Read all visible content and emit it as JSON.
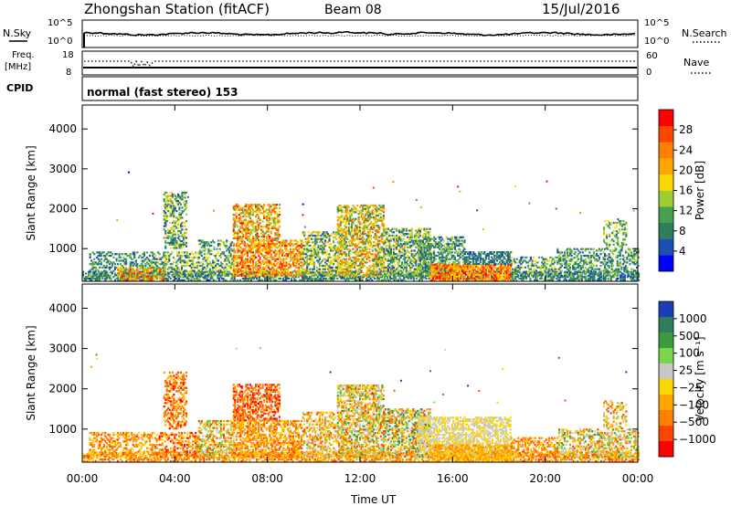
{
  "header": {
    "station": "Zhongshan Station (fitACF)",
    "beam": "Beam 08",
    "date": "15/Jul/2016"
  },
  "top_panels": {
    "nsky_label": "N.Sky",
    "nsearch_label": "N.Search",
    "noise_ticks_left": [
      "10^5",
      "10^0"
    ],
    "noise_ticks_right": [
      "10^5",
      "10^0"
    ],
    "freq_label": "Freq.",
    "freq_unit": "[MHz]",
    "freq_ticks": [
      "18",
      "8"
    ],
    "nave_label": "Nave",
    "nave_ticks": [
      "60",
      "0"
    ],
    "cpid_label": "CPID",
    "cpid_text": "normal (fast stereo) 153"
  },
  "colors": {
    "power_scale": [
      "#0000ff",
      "#1a50b4",
      "#2f7d5c",
      "#46a050",
      "#9ccd32",
      "#ffd700",
      "#ffa500",
      "#ff7f00",
      "#ff4500",
      "#ff0000"
    ],
    "velocity_scale": [
      "#1a3fb4",
      "#2f7d5c",
      "#3d9b3d",
      "#79d64a",
      "#c8c8c8",
      "#ffd700",
      "#ffa500",
      "#ff7f00",
      "#ff4500",
      "#ff0000"
    ]
  },
  "chart_data": [
    {
      "type": "heatmap",
      "title": "Power",
      "xlabel": "Time UT",
      "ylabel": "Slant Range [km]",
      "x_ticks": [
        "00:00",
        "04:00",
        "08:00",
        "12:00",
        "16:00",
        "20:00",
        "00:00"
      ],
      "y_ticks": [
        1000,
        2000,
        3000,
        4000
      ],
      "xlim": [
        0,
        24
      ],
      "ylim": [
        180,
        4600
      ],
      "colorbar_label": "Power [dB]",
      "colorbar_ticks": [
        "4",
        "8",
        "12",
        "16",
        "20",
        "24",
        "28"
      ],
      "colorbar_range": [
        0,
        32
      ],
      "blobs": [
        {
          "t0": 0.0,
          "t1": 24.0,
          "r0": 190,
          "r1": 420,
          "density": 0.55,
          "lo": 3,
          "hi": 14
        },
        {
          "t0": 0.3,
          "t1": 3.0,
          "r0": 300,
          "r1": 900,
          "density": 0.35,
          "lo": 4,
          "hi": 14
        },
        {
          "t0": 1.5,
          "t1": 3.5,
          "r0": 200,
          "r1": 500,
          "density": 0.6,
          "lo": 10,
          "hi": 30
        },
        {
          "t0": 3.0,
          "t1": 5.0,
          "r0": 300,
          "r1": 900,
          "density": 0.4,
          "lo": 5,
          "hi": 18
        },
        {
          "t0": 3.5,
          "t1": 4.5,
          "r0": 1000,
          "r1": 2400,
          "density": 0.4,
          "lo": 4,
          "hi": 20
        },
        {
          "t0": 5.0,
          "t1": 6.5,
          "r0": 300,
          "r1": 1200,
          "density": 0.4,
          "lo": 4,
          "hi": 18
        },
        {
          "t0": 6.5,
          "t1": 9.5,
          "r0": 300,
          "r1": 1200,
          "density": 0.6,
          "lo": 14,
          "hi": 30
        },
        {
          "t0": 6.5,
          "t1": 8.5,
          "r0": 1200,
          "r1": 2100,
          "density": 0.5,
          "lo": 10,
          "hi": 30
        },
        {
          "t0": 9.5,
          "t1": 11.0,
          "r0": 300,
          "r1": 1400,
          "density": 0.45,
          "lo": 4,
          "hi": 22
        },
        {
          "t0": 11.0,
          "t1": 13.0,
          "r0": 300,
          "r1": 2100,
          "density": 0.55,
          "lo": 8,
          "hi": 26
        },
        {
          "t0": 13.0,
          "t1": 15.0,
          "r0": 300,
          "r1": 1500,
          "density": 0.5,
          "lo": 4,
          "hi": 20
        },
        {
          "t0": 14.5,
          "t1": 16.5,
          "r0": 300,
          "r1": 1300,
          "density": 0.5,
          "lo": 4,
          "hi": 16
        },
        {
          "t0": 15.0,
          "t1": 18.5,
          "r0": 200,
          "r1": 600,
          "density": 0.7,
          "lo": 16,
          "hi": 31
        },
        {
          "t0": 16.5,
          "t1": 18.5,
          "r0": 600,
          "r1": 900,
          "density": 0.6,
          "lo": 4,
          "hi": 10
        },
        {
          "t0": 18.5,
          "t1": 20.5,
          "r0": 300,
          "r1": 800,
          "density": 0.4,
          "lo": 4,
          "hi": 18
        },
        {
          "t0": 20.5,
          "t1": 24.0,
          "r0": 300,
          "r1": 1000,
          "density": 0.4,
          "lo": 4,
          "hi": 16
        },
        {
          "t0": 22.5,
          "t1": 23.5,
          "r0": 1000,
          "r1": 1700,
          "density": 0.3,
          "lo": 6,
          "hi": 18
        }
      ]
    },
    {
      "type": "heatmap",
      "title": "Velocity",
      "xlabel": "Time UT",
      "ylabel": "Slant Range [km]",
      "x_ticks": [
        "00:00",
        "04:00",
        "08:00",
        "12:00",
        "16:00",
        "20:00",
        "00:00"
      ],
      "y_ticks": [
        1000,
        2000,
        3000,
        4000
      ],
      "xlim": [
        0,
        24
      ],
      "ylim": [
        180,
        4600
      ],
      "colorbar_label": "Velocity [m s⁻¹]",
      "colorbar_ticks": [
        "1000",
        "500",
        "100",
        "25",
        "−25",
        "−100",
        "−500",
        "−1000"
      ],
      "blobs": [
        {
          "t0": 0.0,
          "t1": 24.0,
          "r0": 190,
          "r1": 420,
          "density": 0.5,
          "lo": 5,
          "hi": 8
        },
        {
          "t0": 0.3,
          "t1": 3.0,
          "r0": 300,
          "r1": 900,
          "density": 0.4,
          "lo": 5,
          "hi": 8
        },
        {
          "t0": 3.0,
          "t1": 5.0,
          "r0": 300,
          "r1": 900,
          "density": 0.4,
          "lo": 5,
          "hi": 9
        },
        {
          "t0": 3.5,
          "t1": 4.5,
          "r0": 1000,
          "r1": 2400,
          "density": 0.4,
          "lo": 5,
          "hi": 9
        },
        {
          "t0": 5.0,
          "t1": 6.5,
          "r0": 300,
          "r1": 1200,
          "density": 0.4,
          "lo": 2,
          "hi": 8
        },
        {
          "t0": 6.5,
          "t1": 9.5,
          "r0": 300,
          "r1": 1200,
          "density": 0.55,
          "lo": 5,
          "hi": 8
        },
        {
          "t0": 6.5,
          "t1": 8.5,
          "r0": 1200,
          "r1": 2100,
          "density": 0.5,
          "lo": 6,
          "hi": 9
        },
        {
          "t0": 9.5,
          "t1": 11.0,
          "r0": 300,
          "r1": 1400,
          "density": 0.45,
          "lo": 3,
          "hi": 8
        },
        {
          "t0": 11.0,
          "t1": 13.0,
          "r0": 300,
          "r1": 2100,
          "density": 0.55,
          "lo": 2,
          "hi": 8
        },
        {
          "t0": 13.0,
          "t1": 15.0,
          "r0": 300,
          "r1": 1500,
          "density": 0.5,
          "lo": 1,
          "hi": 8
        },
        {
          "t0": 14.5,
          "t1": 18.5,
          "r0": 300,
          "r1": 1300,
          "density": 0.55,
          "lo": 4,
          "hi": 5
        },
        {
          "t0": 15.0,
          "t1": 18.5,
          "r0": 200,
          "r1": 600,
          "density": 0.55,
          "lo": 5,
          "hi": 7
        },
        {
          "t0": 18.5,
          "t1": 20.5,
          "r0": 300,
          "r1": 800,
          "density": 0.45,
          "lo": 5,
          "hi": 8
        },
        {
          "t0": 20.5,
          "t1": 24.0,
          "r0": 300,
          "r1": 1000,
          "density": 0.45,
          "lo": 2,
          "hi": 8
        },
        {
          "t0": 22.5,
          "t1": 23.5,
          "r0": 1000,
          "r1": 1700,
          "density": 0.3,
          "lo": 3,
          "hi": 8
        }
      ]
    }
  ]
}
